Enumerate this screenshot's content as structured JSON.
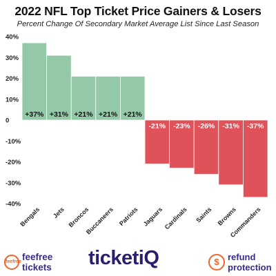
{
  "chart_data": {
    "type": "bar",
    "title": "2022 NFL Top Ticket Price Gainers & Losers",
    "subtitle": "Percent Change Of Secondary Market Average List Since Last Season",
    "categories": [
      "Bengals",
      "Jets",
      "Broncos",
      "Buccaneers",
      "Patriots",
      "Jaguars",
      "Cardinals",
      "Saints",
      "Browns",
      "Commanders"
    ],
    "values": [
      37,
      31,
      21,
      21,
      21,
      -21,
      -23,
      -26,
      -31,
      -37
    ],
    "data_labels": [
      "+37%",
      "+31%",
      "+21%",
      "+21%",
      "+21%",
      "-21%",
      "-23%",
      "-26%",
      "-31%",
      "-37%"
    ],
    "ylim": [
      -40,
      40
    ],
    "yticks": [
      40,
      30,
      20,
      10,
      0,
      -10,
      -20,
      -30,
      -40
    ],
    "ytick_labels": [
      "40%",
      "30%",
      "20%",
      "10%",
      "0",
      "-10%",
      "-20%",
      "-30%",
      "-40%"
    ],
    "xlabel": "",
    "ylabel": "",
    "grid": false,
    "colors": {
      "positive": "#93c9a7",
      "negative": "#e0525a",
      "bar_edge": "#ffffff"
    }
  },
  "footer": {
    "left_logo": {
      "icon": "feefree-ticket-icon",
      "icon_text": "feefree",
      "line1": "feefree",
      "line2": "tickets",
      "color": "#3b2a8a",
      "accent": "#f0642a"
    },
    "center_logo": {
      "text": "ticketiQ",
      "color": "#2a1f6e"
    },
    "right_logo": {
      "icon": "dollar-refresh-icon",
      "icon_text": "$",
      "line1": "refund",
      "line2": "protection",
      "color": "#3b2a8a",
      "accent": "#f0642a"
    }
  }
}
